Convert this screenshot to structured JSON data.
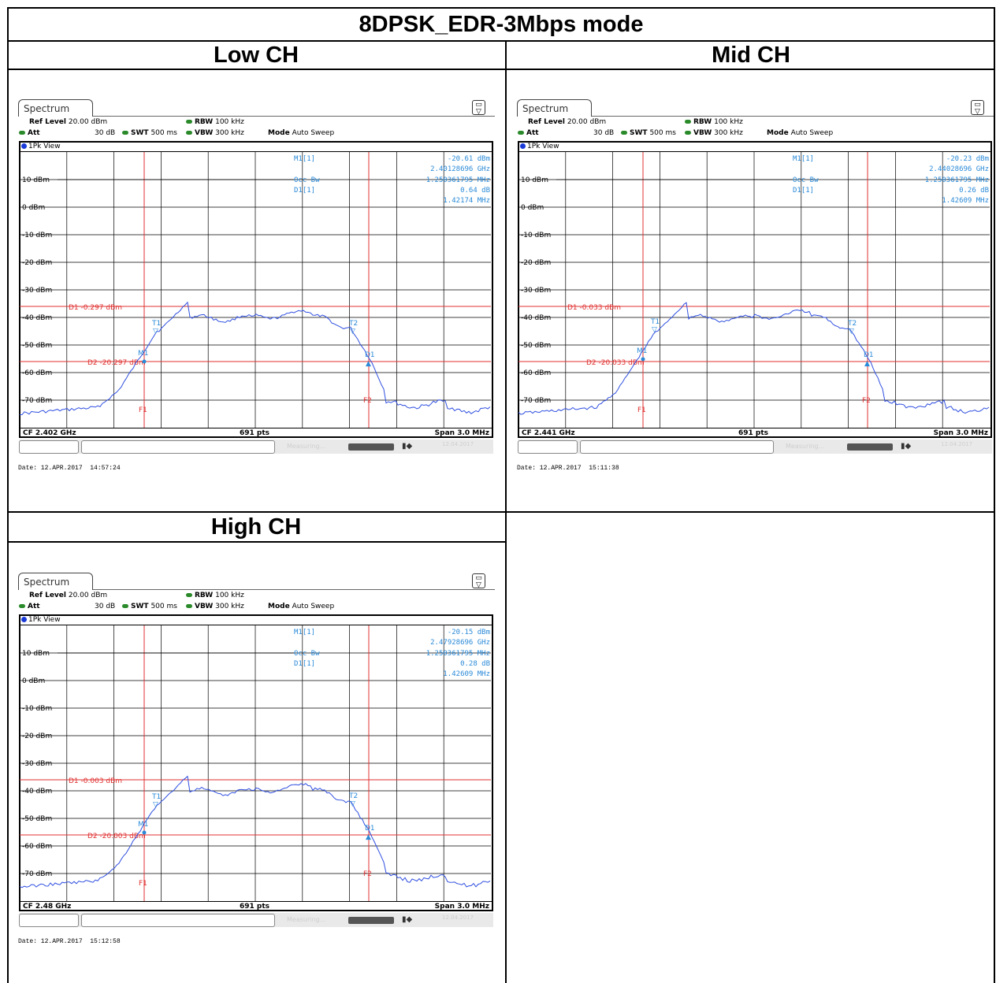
{
  "table": {
    "title": "8DPSK_EDR-3Mbps mode",
    "low_label": "Low CH",
    "mid_label": "Mid CH",
    "high_label": "High CH"
  },
  "common": {
    "tab_label": "Spectrum",
    "ref_level_label": "Ref Level",
    "ref_level": "20.00 dBm",
    "att_label": "Att",
    "att": "30 dB",
    "swt_label": "SWT",
    "swt": "500 ms",
    "rbw_label": "RBW",
    "rbw": "100 kHz",
    "vbw_label": "VBW",
    "vbw": "300 kHz",
    "mode_label": "Mode",
    "mode": "Auto Sweep",
    "view": "1Pk View",
    "points": "691 pts",
    "span": "Span 3.0 MHz",
    "status_measuring": "Measuring...",
    "status_date": "12.04.2017",
    "marker_label": "M1[1]",
    "occbw_label": "Occ Bw",
    "delta_label": "D1[1]",
    "y_ticks": [
      "10 dBm",
      "0 dBm",
      "-10 dBm",
      "-20 dBm",
      "-30 dBm",
      "-40 dBm",
      "-50 dBm",
      "-60 dBm",
      "-70 dBm"
    ],
    "trace_color": "#2f4fe0",
    "marker_color": "#2a8ad8",
    "line_color": "#e03030"
  },
  "panels": [
    {
      "name": "low",
      "m1_value": "-20.61 dBm",
      "m1_freq": "2.40128696 GHz",
      "occbw": "1.250361795 MHz",
      "d1_value": "0.64 dB",
      "d1_freq": "1.42174 MHz",
      "d1_line": "D1 -0.297 dBm",
      "d2_line": "D2 -20.297 dBm",
      "cf": "CF 2.402 GHz",
      "date": "Date: 12.APR.2017  14:57:24"
    },
    {
      "name": "mid",
      "m1_value": "-20.23 dBm",
      "m1_freq": "2.44028696 GHz",
      "occbw": "1.250361795 MHz",
      "d1_value": "0.26 dB",
      "d1_freq": "1.42609 MHz",
      "d1_line": "D1 -0.033 dBm",
      "d2_line": "D2 -20.033 dBm",
      "cf": "CF 2.441 GHz",
      "date": "Date: 12.APR.2017  15:11:38"
    },
    {
      "name": "high",
      "m1_value": "-20.15 dBm",
      "m1_freq": "2.47928696 GHz",
      "occbw": "1.250361795 MHz",
      "d1_value": "0.28 dB",
      "d1_freq": "1.42609 MHz",
      "d1_line": "D1 -0.003 dBm",
      "d2_line": "D2 -20.003 dBm",
      "cf": "CF 2.48 GHz",
      "date": "Date: 12.APR.2017  15:12:58"
    }
  ]
}
